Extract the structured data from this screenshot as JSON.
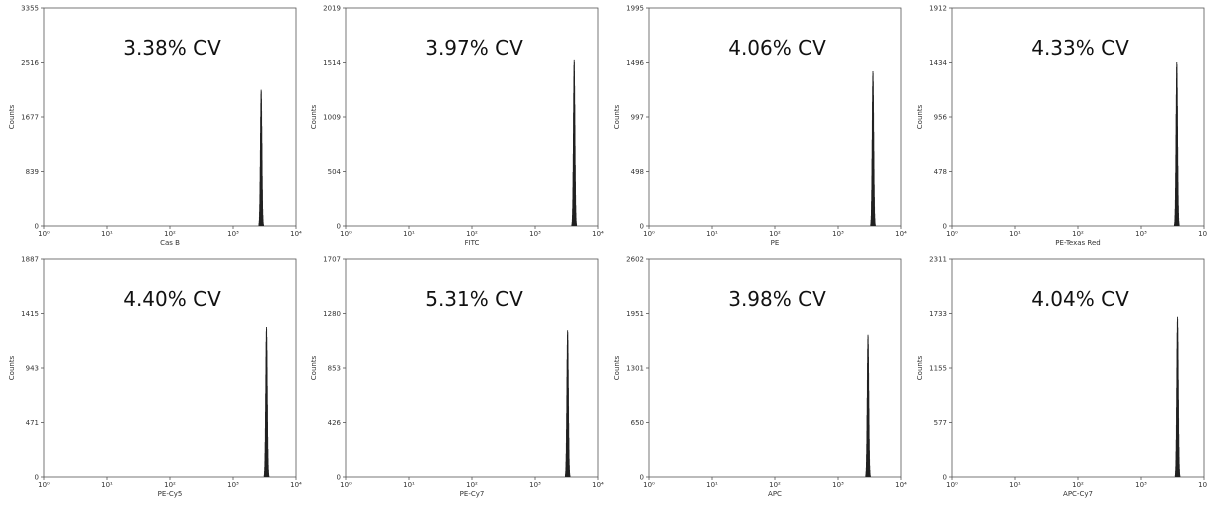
{
  "chart_data": [
    {
      "type": "histogram",
      "annotation": "3.38% CV",
      "xlabel": "Cas B",
      "ylabel": "Counts",
      "xscale": "log",
      "xlim": [
        1,
        10000
      ],
      "x_ticks": [
        "10⁰",
        "10¹",
        "10²",
        "10³",
        "10⁴"
      ],
      "ylim": [
        0,
        3355
      ],
      "y_ticks": [
        "0",
        "839",
        "1677",
        "2516",
        "3355"
      ],
      "peak": {
        "center": 2800,
        "max_count": 2100
      }
    },
    {
      "type": "histogram",
      "annotation": "3.97% CV",
      "xlabel": "FITC",
      "ylabel": "Counts",
      "xscale": "log",
      "xlim": [
        1,
        10000
      ],
      "x_ticks": [
        "10⁰",
        "10¹",
        "10²",
        "10³",
        "10⁴"
      ],
      "ylim": [
        0,
        2019
      ],
      "y_ticks": [
        "0",
        "504",
        "1009",
        "1514",
        "2019"
      ],
      "peak": {
        "center": 4200,
        "max_count": 1540
      }
    },
    {
      "type": "histogram",
      "annotation": "4.06% CV",
      "xlabel": "PE",
      "ylabel": "Counts",
      "xscale": "log",
      "xlim": [
        1,
        10000
      ],
      "x_ticks": [
        "10⁰",
        "10¹",
        "10²",
        "10³",
        "10⁴"
      ],
      "ylim": [
        0,
        1995
      ],
      "y_ticks": [
        "0",
        "498",
        "997",
        "1496",
        "1995"
      ],
      "peak": {
        "center": 3600,
        "max_count": 1420
      }
    },
    {
      "type": "histogram",
      "annotation": "4.33% CV",
      "xlabel": "PE-Texas Red",
      "ylabel": "Counts",
      "xscale": "log",
      "xlim": [
        1,
        10000
      ],
      "x_ticks": [
        "10⁰",
        "10¹",
        "10²",
        "10³",
        "10⁴"
      ],
      "ylim": [
        0,
        1912
      ],
      "y_ticks": [
        "0",
        "478",
        "956",
        "1434",
        "1912"
      ],
      "peak": {
        "center": 3700,
        "max_count": 1440
      }
    },
    {
      "type": "histogram",
      "annotation": "4.40% CV",
      "xlabel": "PE-Cy5",
      "ylabel": "Counts",
      "xscale": "log",
      "xlim": [
        1,
        10000
      ],
      "x_ticks": [
        "10⁰",
        "10¹",
        "10²",
        "10³",
        "10⁴"
      ],
      "ylim": [
        0,
        1887
      ],
      "y_ticks": [
        "0",
        "471",
        "943",
        "1415",
        "1887"
      ],
      "peak": {
        "center": 3400,
        "max_count": 1300
      }
    },
    {
      "type": "histogram",
      "annotation": "5.31% CV",
      "xlabel": "PE-Cy7",
      "ylabel": "Counts",
      "xscale": "log",
      "xlim": [
        1,
        10000
      ],
      "x_ticks": [
        "10⁰",
        "10¹",
        "10²",
        "10³",
        "10⁴"
      ],
      "ylim": [
        0,
        1707
      ],
      "y_ticks": [
        "0",
        "426",
        "853",
        "1280",
        "1707"
      ],
      "peak": {
        "center": 3300,
        "max_count": 1150
      }
    },
    {
      "type": "histogram",
      "annotation": "3.98% CV",
      "xlabel": "APC",
      "ylabel": "Counts",
      "xscale": "log",
      "xlim": [
        1,
        10000
      ],
      "x_ticks": [
        "10⁰",
        "10¹",
        "10²",
        "10³",
        "10⁴"
      ],
      "ylim": [
        0,
        2602
      ],
      "y_ticks": [
        "0",
        "650",
        "1301",
        "1951",
        "2602"
      ],
      "peak": {
        "center": 3000,
        "max_count": 1700
      }
    },
    {
      "type": "histogram",
      "annotation": "4.04% CV",
      "xlabel": "APC-Cy7",
      "ylabel": "Counts",
      "xscale": "log",
      "xlim": [
        1,
        10000
      ],
      "x_ticks": [
        "10⁰",
        "10¹",
        "10²",
        "10³",
        "10⁴"
      ],
      "ylim": [
        0,
        2311
      ],
      "y_ticks": [
        "0",
        "577",
        "1155",
        "1733",
        "2311"
      ],
      "peak": {
        "center": 3800,
        "max_count": 1700
      }
    }
  ]
}
